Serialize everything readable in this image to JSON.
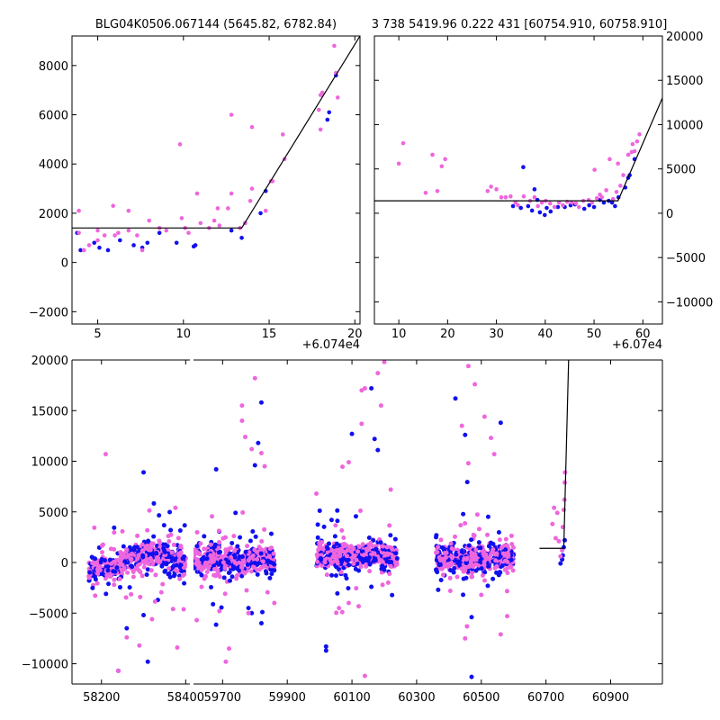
{
  "chart_data": [
    {
      "type": "scatter",
      "panel": "top-left",
      "title": "BLG04K0506.067144 (5645.82, 6782.84)",
      "x_offset_label": "+6.074e4",
      "xlim": [
        3.5,
        20.3
      ],
      "ylim": [
        -2500,
        9200
      ],
      "xticks": [
        5,
        10,
        15,
        20
      ],
      "yticks": [
        -2000,
        0,
        2000,
        4000,
        6000,
        8000
      ],
      "yaxis_side": "left",
      "colors": {
        "series_a": "#1010ee",
        "series_b": "#ee66dd",
        "model": "#000000"
      },
      "model_line": [
        [
          3.5,
          1400
        ],
        [
          13.4,
          1400
        ],
        [
          20.3,
          9200
        ]
      ],
      "series": [
        {
          "color_key": "series_a",
          "points": [
            [
              3.8,
              1200
            ],
            [
              4.0,
              500
            ],
            [
              4.8,
              800
            ],
            [
              5.1,
              600
            ],
            [
              5.6,
              500
            ],
            [
              6.3,
              900
            ],
            [
              7.1,
              700
            ],
            [
              7.6,
              600
            ],
            [
              7.9,
              800
            ],
            [
              8.6,
              1200
            ],
            [
              9.6,
              800
            ],
            [
              10.6,
              650
            ],
            [
              10.7,
              700
            ],
            [
              12.8,
              1300
            ],
            [
              13.4,
              1000
            ],
            [
              13.6,
              1600
            ],
            [
              14.5,
              2000
            ],
            [
              14.8,
              2900
            ],
            [
              18.4,
              5800
            ],
            [
              18.5,
              6100
            ],
            [
              18.9,
              7600
            ]
          ]
        },
        {
          "color_key": "series_b",
          "points": [
            [
              3.9,
              2100
            ],
            [
              3.9,
              1200
            ],
            [
              4.2,
              500
            ],
            [
              4.5,
              700
            ],
            [
              5.0,
              900
            ],
            [
              5.0,
              1300
            ],
            [
              5.4,
              1100
            ],
            [
              5.9,
              2300
            ],
            [
              6.0,
              1100
            ],
            [
              6.2,
              1200
            ],
            [
              6.8,
              2100
            ],
            [
              6.8,
              1300
            ],
            [
              7.3,
              1100
            ],
            [
              7.6,
              500
            ],
            [
              8.0,
              1700
            ],
            [
              8.6,
              1400
            ],
            [
              9.0,
              1300
            ],
            [
              9.8,
              4800
            ],
            [
              9.9,
              1800
            ],
            [
              10.1,
              1400
            ],
            [
              10.3,
              1200
            ],
            [
              10.8,
              2800
            ],
            [
              11.0,
              1600
            ],
            [
              11.5,
              1400
            ],
            [
              11.8,
              1700
            ],
            [
              12.0,
              2200
            ],
            [
              12.1,
              1500
            ],
            [
              12.6,
              2200
            ],
            [
              12.8,
              2800
            ],
            [
              12.8,
              6000
            ],
            [
              13.3,
              1400
            ],
            [
              13.6,
              1600
            ],
            [
              13.9,
              2500
            ],
            [
              14.0,
              5500
            ],
            [
              14.0,
              3000
            ],
            [
              14.8,
              2100
            ],
            [
              15.1,
              3300
            ],
            [
              15.2,
              3300
            ],
            [
              15.8,
              5200
            ],
            [
              15.9,
              4200
            ],
            [
              17.9,
              6200
            ],
            [
              18.0,
              6800
            ],
            [
              18.0,
              5400
            ],
            [
              18.1,
              6900
            ],
            [
              18.8,
              8800
            ],
            [
              18.9,
              7700
            ],
            [
              19.0,
              6700
            ]
          ]
        }
      ]
    },
    {
      "type": "scatter",
      "panel": "top-right",
      "title": "3 738 5419.96 0.222 431 [60754.910, 60758.910]",
      "x_offset_label": "+6.07e4",
      "xlim": [
        5,
        64
      ],
      "ylim": [
        -12500,
        20000
      ],
      "xticks": [
        10,
        20,
        30,
        40,
        50,
        60
      ],
      "yticks": [
        -10000,
        -5000,
        0,
        5000,
        10000,
        15000,
        20000
      ],
      "yaxis_side": "right",
      "colors": {
        "series_a": "#1010ee",
        "series_b": "#ee66dd",
        "model": "#000000"
      },
      "model_line": [
        [
          5,
          1400
        ],
        [
          54.9,
          1400
        ],
        [
          64,
          13000
        ]
      ],
      "series": [
        {
          "color_key": "series_a",
          "points": [
            [
              33.4,
              800
            ],
            [
              35.0,
              600
            ],
            [
              35.5,
              5200
            ],
            [
              36.5,
              800
            ],
            [
              37.3,
              300
            ],
            [
              37.8,
              2700
            ],
            [
              38.4,
              1500
            ],
            [
              38.9,
              100
            ],
            [
              39.9,
              -200
            ],
            [
              40.3,
              600
            ],
            [
              41.1,
              200
            ],
            [
              42.6,
              700
            ],
            [
              44.0,
              700
            ],
            [
              45.2,
              900
            ],
            [
              46.1,
              1000
            ],
            [
              48.0,
              500
            ],
            [
              49.0,
              900
            ],
            [
              50.0,
              700
            ],
            [
              51.2,
              1500
            ],
            [
              52.0,
              1200
            ],
            [
              53.0,
              1400
            ],
            [
              53.7,
              1200
            ],
            [
              54.3,
              800
            ],
            [
              55.0,
              1800
            ],
            [
              56.4,
              2900
            ],
            [
              57.0,
              4000
            ],
            [
              57.3,
              4300
            ],
            [
              58.3,
              6100
            ]
          ]
        },
        {
          "color_key": "series_b",
          "points": [
            [
              10.0,
              5600
            ],
            [
              10.9,
              7900
            ],
            [
              15.5,
              2300
            ],
            [
              16.9,
              6600
            ],
            [
              17.9,
              2500
            ],
            [
              18.8,
              5300
            ],
            [
              19.5,
              6100
            ],
            [
              28.2,
              2500
            ],
            [
              28.9,
              3000
            ],
            [
              30.0,
              2700
            ],
            [
              31.0,
              1800
            ],
            [
              31.9,
              1800
            ],
            [
              32.9,
              1900
            ],
            [
              33.9,
              1200
            ],
            [
              34.4,
              900
            ],
            [
              35.6,
              1900
            ],
            [
              36.9,
              1400
            ],
            [
              37.8,
              1800
            ],
            [
              38.5,
              800
            ],
            [
              39.3,
              1200
            ],
            [
              40.1,
              1400
            ],
            [
              41.0,
              1100
            ],
            [
              41.9,
              700
            ],
            [
              42.8,
              1200
            ],
            [
              43.6,
              900
            ],
            [
              44.5,
              1300
            ],
            [
              45.4,
              1200
            ],
            [
              46.3,
              1100
            ],
            [
              46.9,
              700
            ],
            [
              47.8,
              1400
            ],
            [
              48.9,
              1500
            ],
            [
              49.6,
              1200
            ],
            [
              50.1,
              4900
            ],
            [
              50.6,
              1700
            ],
            [
              51.2,
              2100
            ],
            [
              51.6,
              1800
            ],
            [
              52.5,
              2600
            ],
            [
              53.2,
              6100
            ],
            [
              53.9,
              1600
            ],
            [
              54.6,
              2400
            ],
            [
              54.9,
              5600
            ],
            [
              55.4,
              3100
            ],
            [
              56.0,
              4300
            ],
            [
              57.0,
              6600
            ],
            [
              57.7,
              6900
            ],
            [
              57.9,
              7800
            ],
            [
              58.3,
              7000
            ],
            [
              58.8,
              8100
            ],
            [
              59.3,
              8900
            ]
          ]
        }
      ]
    },
    {
      "type": "scatter",
      "panel": "bottom",
      "xlim_left": [
        58130,
        58410
      ],
      "xlim_right": [
        59610,
        61060
      ],
      "ylim": [
        -12000,
        20000
      ],
      "xticks_left": [
        58200,
        58400
      ],
      "xticks_right": [
        59700,
        59900,
        60100,
        60300,
        60500,
        60700,
        60900
      ],
      "yticks": [
        -10000,
        -5000,
        0,
        5000,
        10000,
        15000,
        20000
      ],
      "colors": {
        "series_a": "#1010ee",
        "series_b": "#ee66dd",
        "model": "#000000"
      },
      "model_line": [
        [
          60680,
          1400
        ],
        [
          60755,
          1400
        ],
        [
          60770,
          20000
        ]
      ],
      "season_clusters": [
        {
          "x_range": [
            58170,
            58400
          ],
          "baseline": 0,
          "shape": "sine",
          "amp": 800
        },
        {
          "x_range": [
            59610,
            59860
          ],
          "baseline": 300,
          "shape": "flat",
          "amp": 0
        },
        {
          "x_range": [
            59990,
            60240
          ],
          "baseline": 600,
          "shape": "flat",
          "amp": 0
        },
        {
          "x_range": [
            60360,
            60600
          ],
          "baseline": 400,
          "shape": "flat",
          "amp": 0
        }
      ],
      "outliers": [
        {
          "color_key": "series_a",
          "points": [
            [
              58240,
              -10700
            ],
            [
              58300,
              8900
            ],
            [
              58310,
              -9800
            ],
            [
              58260,
              -6500
            ],
            [
              58300,
              -5200
            ],
            [
              59680,
              9200
            ],
            [
              59740,
              4900
            ],
            [
              59780,
              -4500
            ],
            [
              59790,
              -5000
            ],
            [
              59800,
              9600
            ],
            [
              59820,
              15800
            ],
            [
              59810,
              11800
            ],
            [
              59820,
              -6000
            ],
            [
              60020,
              -8300
            ],
            [
              60020,
              -8700
            ],
            [
              60100,
              12700
            ],
            [
              60170,
              12200
            ],
            [
              60180,
              11100
            ],
            [
              60160,
              17200
            ],
            [
              60420,
              16200
            ],
            [
              60450,
              12600
            ],
            [
              60470,
              -5400
            ],
            [
              60470,
              -11300
            ],
            [
              60560,
              13800
            ],
            [
              60520,
              -2300
            ]
          ]
        },
        {
          "color_key": "series_b",
          "points": [
            [
              58210,
              10700
            ],
            [
              58240,
              -10700
            ],
            [
              58260,
              -7400
            ],
            [
              58290,
              -8200
            ],
            [
              58320,
              -5600
            ],
            [
              58380,
              -8400
            ],
            [
              58370,
              -4600
            ],
            [
              59620,
              -5700
            ],
            [
              59690,
              -4800
            ],
            [
              59710,
              -9800
            ],
            [
              59720,
              -8500
            ],
            [
              59760,
              15500
            ],
            [
              59800,
              18200
            ],
            [
              59760,
              14000
            ],
            [
              59770,
              12400
            ],
            [
              59790,
              11200
            ],
            [
              59820,
              10800
            ],
            [
              59830,
              9500
            ],
            [
              59780,
              -5000
            ],
            [
              59860,
              -4000
            ],
            [
              59990,
              6800
            ],
            [
              60060,
              -4500
            ],
            [
              60070,
              -4900
            ],
            [
              60090,
              -4000
            ],
            [
              60130,
              17000
            ],
            [
              60140,
              17200
            ],
            [
              60140,
              -11200
            ],
            [
              60180,
              18700
            ],
            [
              60200,
              19800
            ],
            [
              60190,
              15500
            ],
            [
              60220,
              7200
            ],
            [
              60090,
              9900
            ],
            [
              60130,
              13700
            ],
            [
              60450,
              -7500
            ],
            [
              60460,
              19400
            ],
            [
              60440,
              13500
            ],
            [
              60460,
              9800
            ],
            [
              60480,
              17600
            ],
            [
              60510,
              14400
            ],
            [
              60530,
              12300
            ],
            [
              60540,
              10700
            ],
            [
              60560,
              -7100
            ],
            [
              60580,
              -5300
            ],
            [
              60500,
              -3200
            ]
          ]
        }
      ],
      "late_points": [
        {
          "color_key": "series_a",
          "points": [
            [
              60745,
              -100
            ],
            [
              60750,
              300
            ],
            [
              60752,
              700
            ],
            [
              60755,
              1500
            ],
            [
              60758,
              2200
            ]
          ]
        },
        {
          "color_key": "series_b",
          "points": [
            [
              60720,
              3800
            ],
            [
              60725,
              5400
            ],
            [
              60730,
              2400
            ],
            [
              60735,
              4900
            ],
            [
              60740,
              2100
            ],
            [
              60745,
              600
            ],
            [
              60750,
              1200
            ],
            [
              60752,
              3500
            ],
            [
              60755,
              5200
            ],
            [
              60757,
              6200
            ],
            [
              60758,
              7900
            ],
            [
              60759,
              8900
            ]
          ]
        }
      ]
    }
  ]
}
